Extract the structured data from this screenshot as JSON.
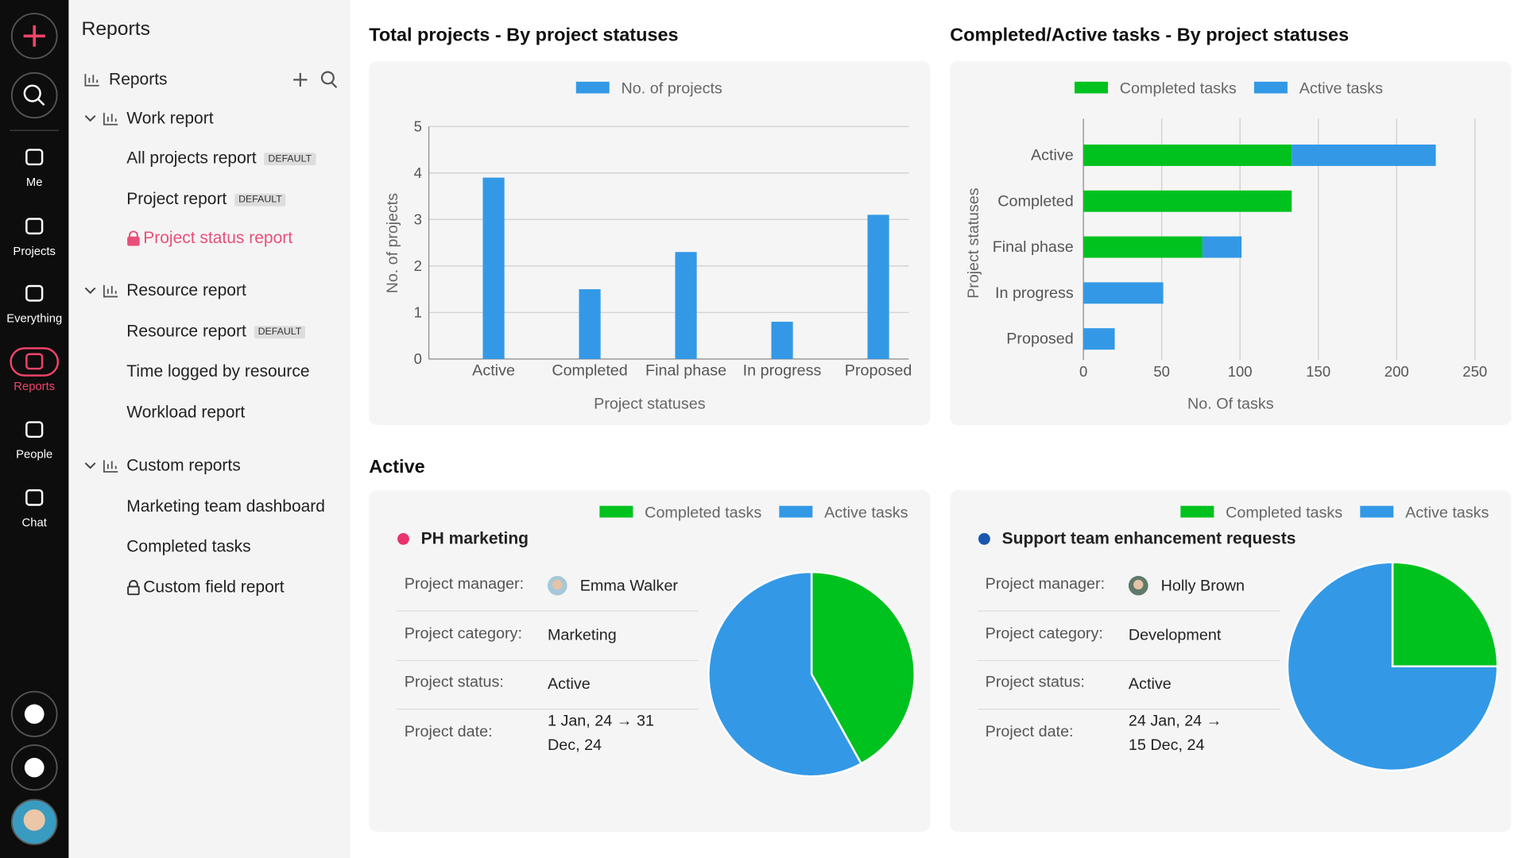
{
  "nav": {
    "items": [
      {
        "label": "Me"
      },
      {
        "label": "Projects"
      },
      {
        "label": "Everything"
      },
      {
        "label": "Reports"
      },
      {
        "label": "People"
      },
      {
        "label": "Chat"
      }
    ]
  },
  "sidebar": {
    "title": "Reports",
    "section": "Reports",
    "groups": [
      {
        "name": "Work report",
        "items": [
          {
            "label": "All projects report",
            "badge": "DEFAULT"
          },
          {
            "label": "Project report",
            "badge": "DEFAULT"
          },
          {
            "label": "Project status report",
            "locked": true,
            "active": true
          }
        ]
      },
      {
        "name": "Resource report",
        "items": [
          {
            "label": "Resource report",
            "badge": "DEFAULT"
          },
          {
            "label": "Time logged by resource"
          },
          {
            "label": "Workload report"
          }
        ]
      },
      {
        "name": "Custom reports",
        "items": [
          {
            "label": "Marketing team dashboard"
          },
          {
            "label": "Completed tasks"
          },
          {
            "label": "Custom field report",
            "locked": true
          }
        ]
      }
    ]
  },
  "section_title": "Active",
  "chart_data": [
    {
      "type": "bar",
      "title": "Total projects - By project statuses",
      "x_label": "Project statuses",
      "y_label": "No. of projects",
      "categories": [
        "Active",
        "Completed",
        "Final phase",
        "In progress",
        "Proposed"
      ],
      "series": [
        {
          "name": "No. of projects",
          "color": "#3399e6",
          "values": [
            3.9,
            1.5,
            2.3,
            0.8,
            3.1
          ]
        }
      ],
      "ylim": [
        0,
        5
      ],
      "yticks": [
        0,
        1,
        2,
        3,
        4,
        5
      ],
      "grid": true
    },
    {
      "type": "hbar",
      "stacked": true,
      "title": "Completed/Active tasks - By project statuses",
      "x_label": "No. Of tasks",
      "y_label": "Project statuses",
      "categories": [
        "Active",
        "Completed",
        "Final phase",
        "In progress",
        "Proposed"
      ],
      "series": [
        {
          "name": "Completed tasks",
          "color": "#00c21f",
          "values": [
            133,
            133,
            76,
            0,
            0
          ]
        },
        {
          "name": "Active tasks",
          "color": "#3399e6",
          "values": [
            92,
            0,
            25,
            51,
            20
          ]
        }
      ],
      "xlim": [
        0,
        250
      ],
      "xticks": [
        0,
        50,
        100,
        150,
        200,
        250
      ],
      "grid": true
    },
    {
      "type": "pie",
      "categories": [
        "Completed tasks",
        "Active tasks"
      ],
      "colors": [
        "#00c21f",
        "#3399e6"
      ],
      "values": [
        42,
        58
      ]
    },
    {
      "type": "pie",
      "categories": [
        "Completed tasks",
        "Active tasks"
      ],
      "colors": [
        "#00c21f",
        "#3399e6"
      ],
      "values": [
        25,
        75
      ]
    }
  ],
  "projects": [
    {
      "name": "PH marketing",
      "dot": "#e8336d",
      "fields": [
        {
          "label": "Project manager:",
          "value": "Emma Walker"
        },
        {
          "label": "Project category:",
          "value": "Marketing"
        },
        {
          "label": "Project status:",
          "value": "Active"
        },
        {
          "label": "Project date:",
          "value": "1 Jan, 24 → 31 Dec, 24"
        }
      ]
    },
    {
      "name": "Support team enhancement requests",
      "dot": "#1a56b0",
      "fields": [
        {
          "label": "Project manager:",
          "value": "Holly Brown"
        },
        {
          "label": "Project category:",
          "value": "Development"
        },
        {
          "label": "Project status:",
          "value": "Active"
        },
        {
          "label": "Project date:",
          "value": "24 Jan, 24 → 15 Dec, 24"
        }
      ]
    }
  ]
}
